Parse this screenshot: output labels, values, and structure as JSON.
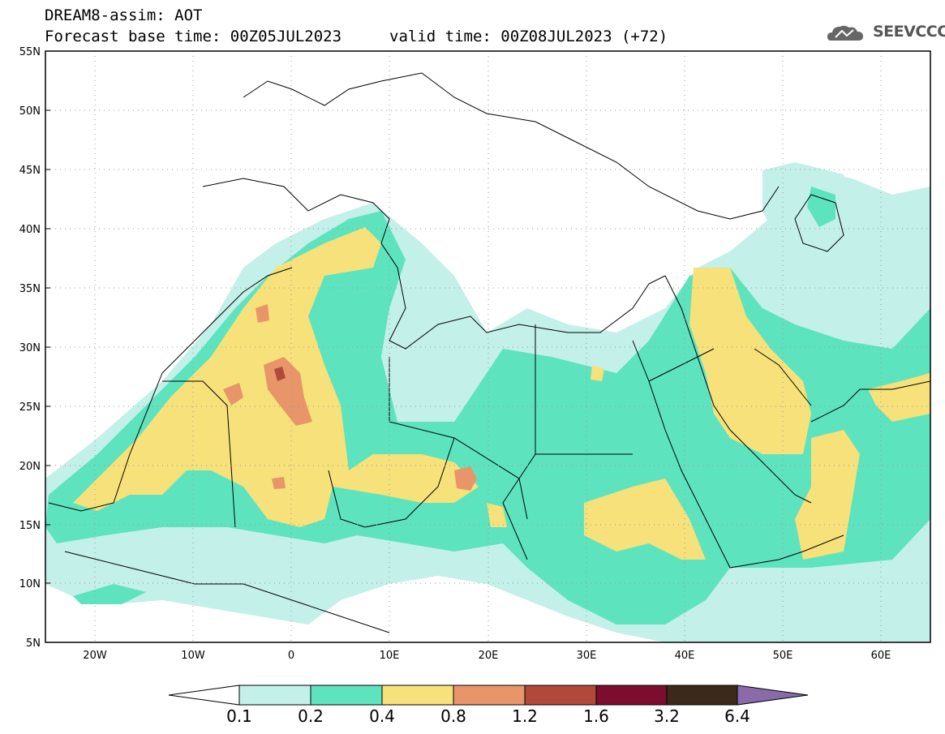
{
  "header": {
    "line1": "DREAM8-assim: AOT",
    "line2": "Forecast base time: 00Z05JUL2023",
    "line2b": "valid time: 00Z08JUL2023 (+72)"
  },
  "logo": {
    "text": "SEEVCCC",
    "icon": "cloud-logo-icon"
  },
  "map": {
    "lat_labels": [
      "55N",
      "50N",
      "45N",
      "40N",
      "35N",
      "30N",
      "25N",
      "20N",
      "15N",
      "10N",
      "5N"
    ],
    "lon_labels": [
      "20W",
      "10W",
      "0",
      "10E",
      "20E",
      "30E",
      "40E",
      "50E",
      "60E"
    ],
    "lat_range": [
      5,
      55
    ],
    "lon_range": [
      -25,
      65
    ],
    "grid": "dotted"
  },
  "colorbar": {
    "labels": [
      "0.1",
      "0.2",
      "0.4",
      "0.8",
      "1.2",
      "1.6",
      "3.2",
      "6.4"
    ],
    "colors": [
      "#c3f0e8",
      "#5ee3bf",
      "#f7e17a",
      "#e8956a",
      "#b0483b",
      "#7d0d2e",
      "#3b2a1a",
      "#8a6aa8"
    ]
  }
}
